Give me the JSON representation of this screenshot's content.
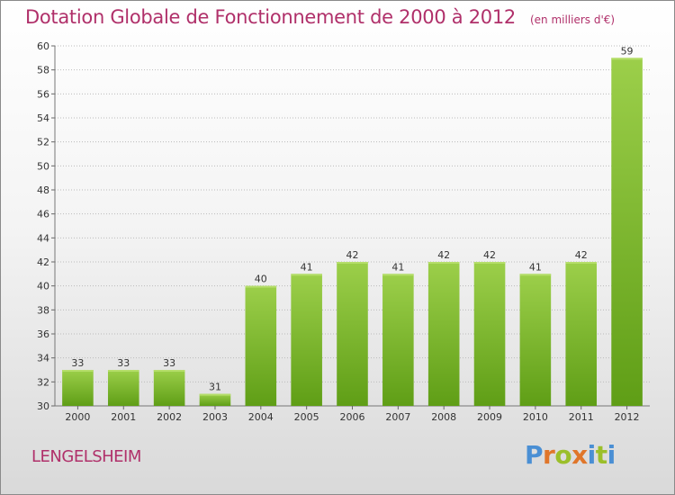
{
  "header": {
    "title": "Dotation Globale de Fonctionnement de 2000 à 2012",
    "unit": "(en milliers d'€)"
  },
  "footer": {
    "commune": "LENGELSHEIM",
    "logo": {
      "text": "Proxiti",
      "colors": [
        "#4a8fd4",
        "#e0762a",
        "#9bbf2a",
        "#e0762a",
        "#4a8fd4",
        "#9bbf2a",
        "#4a8fd4"
      ]
    }
  },
  "colors": {
    "title": "#b0306a",
    "bar_light": "#9ccf4a",
    "bar_dark": "#5f9e16",
    "grid": "#bbbbbb"
  },
  "chart_data": {
    "type": "bar",
    "categories": [
      "2000",
      "2001",
      "2002",
      "2003",
      "2004",
      "2005",
      "2006",
      "2007",
      "2008",
      "2009",
      "2010",
      "2011",
      "2012"
    ],
    "values": [
      33,
      33,
      33,
      31,
      40,
      41,
      42,
      41,
      42,
      42,
      41,
      42,
      59
    ],
    "ylim": [
      30,
      60
    ],
    "yticks": [
      30,
      32,
      34,
      36,
      38,
      40,
      42,
      44,
      46,
      48,
      50,
      52,
      54,
      56,
      58,
      60
    ],
    "grid": true,
    "legend": "none"
  }
}
